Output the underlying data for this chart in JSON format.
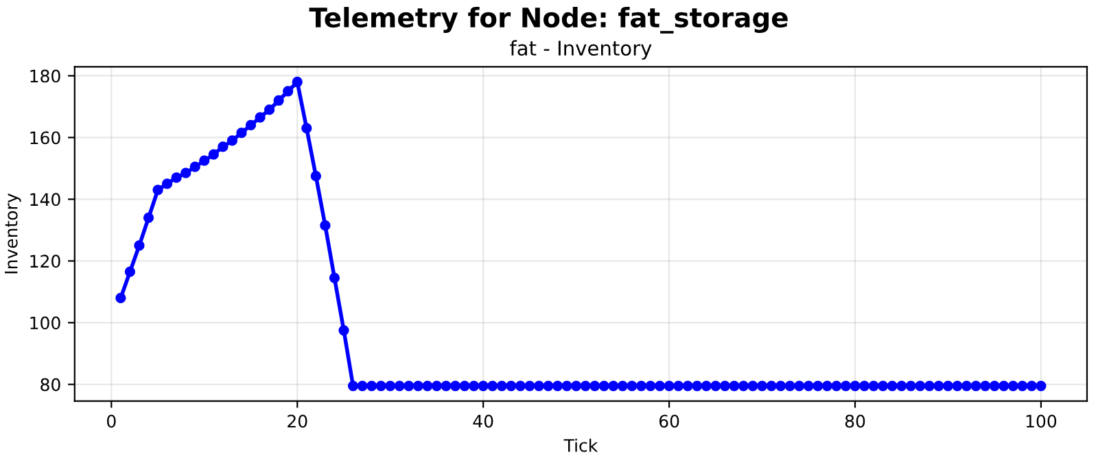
{
  "chart_data": {
    "type": "line",
    "title": "Telemetry for Node: fat_storage",
    "subtitle": "fat - Inventory",
    "xlabel": "Tick",
    "ylabel": "Inventory",
    "x": [
      1,
      2,
      3,
      4,
      5,
      6,
      7,
      8,
      9,
      10,
      11,
      12,
      13,
      14,
      15,
      16,
      17,
      18,
      19,
      20,
      21,
      22,
      23,
      24,
      25,
      26,
      27,
      28,
      29,
      30,
      31,
      32,
      33,
      34,
      35,
      36,
      37,
      38,
      39,
      40,
      41,
      42,
      43,
      44,
      45,
      46,
      47,
      48,
      49,
      50,
      51,
      52,
      53,
      54,
      55,
      56,
      57,
      58,
      59,
      60,
      61,
      62,
      63,
      64,
      65,
      66,
      67,
      68,
      69,
      70,
      71,
      72,
      73,
      74,
      75,
      76,
      77,
      78,
      79,
      80,
      81,
      82,
      83,
      84,
      85,
      86,
      87,
      88,
      89,
      90,
      91,
      92,
      93,
      94,
      95,
      96,
      97,
      98,
      99,
      100
    ],
    "series": [
      {
        "color": "#0000ff",
        "values": [
          108,
          116.5,
          125,
          134,
          143,
          145,
          147,
          148.5,
          150.5,
          152.5,
          154.5,
          157,
          159,
          161.5,
          164,
          166.5,
          169,
          172,
          175,
          178,
          163,
          147.5,
          131.5,
          114.5,
          97.5,
          79.5,
          79.5,
          79.5,
          79.5,
          79.5,
          79.5,
          79.5,
          79.5,
          79.5,
          79.5,
          79.5,
          79.5,
          79.5,
          79.5,
          79.5,
          79.5,
          79.5,
          79.5,
          79.5,
          79.5,
          79.5,
          79.5,
          79.5,
          79.5,
          79.5,
          79.5,
          79.5,
          79.5,
          79.5,
          79.5,
          79.5,
          79.5,
          79.5,
          79.5,
          79.5,
          79.5,
          79.5,
          79.5,
          79.5,
          79.5,
          79.5,
          79.5,
          79.5,
          79.5,
          79.5,
          79.5,
          79.5,
          79.5,
          79.5,
          79.5,
          79.5,
          79.5,
          79.5,
          79.5,
          79.5,
          79.5,
          79.5,
          79.5,
          79.5,
          79.5,
          79.5,
          79.5,
          79.5,
          79.5,
          79.5,
          79.5,
          79.5,
          79.5,
          79.5,
          79.5,
          79.5,
          79.5,
          79.5,
          79.5,
          79.5
        ]
      }
    ],
    "xlim": [
      -3.95,
      104.95
    ],
    "xticks": [
      0,
      20,
      40,
      60,
      80,
      100
    ],
    "ylim": [
      74.6,
      182.9
    ],
    "yticks": [
      80,
      100,
      120,
      140,
      160,
      180
    ],
    "grid": true,
    "marker": "circle",
    "line_style": "solid"
  }
}
